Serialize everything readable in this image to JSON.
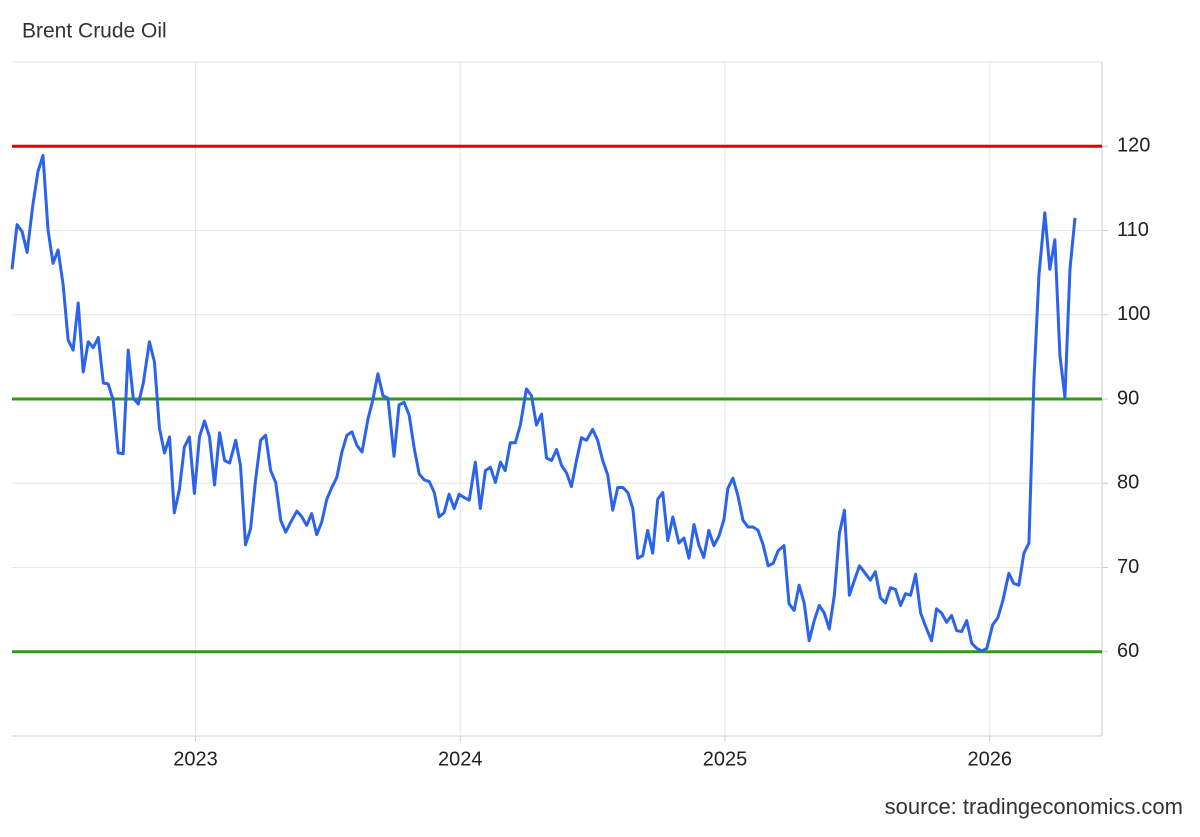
{
  "chart_data": {
    "type": "line",
    "title": "Brent Crude Oil",
    "source": "source: tradingeconomics.com",
    "x": [
      2022.307,
      2022.326,
      2022.345,
      2022.364,
      2022.386,
      2022.405,
      2022.424,
      2022.443,
      2022.462,
      2022.481,
      2022.5,
      2022.519,
      2022.538,
      2022.557,
      2022.576,
      2022.595,
      2022.614,
      2022.633,
      2022.652,
      2022.67,
      2022.689,
      2022.708,
      2022.727,
      2022.746,
      2022.765,
      2022.784,
      2022.803,
      2022.826,
      2022.845,
      2022.864,
      2022.883,
      2022.902,
      2022.92,
      2022.939,
      2022.958,
      2022.977,
      2022.996,
      2023.015,
      2023.034,
      2023.053,
      2023.072,
      2023.091,
      2023.11,
      2023.129,
      2023.152,
      2023.17,
      2023.189,
      2023.208,
      2023.227,
      2023.246,
      2023.265,
      2023.284,
      2023.303,
      2023.322,
      2023.341,
      2023.36,
      2023.383,
      2023.402,
      2023.42,
      2023.439,
      2023.458,
      2023.477,
      2023.496,
      2023.515,
      2023.534,
      2023.553,
      2023.572,
      2023.591,
      2023.61,
      2023.629,
      2023.652,
      2023.67,
      2023.689,
      2023.708,
      2023.727,
      2023.75,
      2023.769,
      2023.788,
      2023.807,
      2023.826,
      2023.845,
      2023.864,
      2023.883,
      2023.902,
      2023.92,
      2023.939,
      2023.958,
      2023.977,
      2023.996,
      2024.015,
      2024.034,
      2024.057,
      2024.076,
      2024.095,
      2024.114,
      2024.133,
      2024.152,
      2024.17,
      2024.189,
      2024.208,
      2024.227,
      2024.25,
      2024.269,
      2024.288,
      2024.307,
      2024.326,
      2024.345,
      2024.364,
      2024.383,
      2024.402,
      2024.42,
      2024.439,
      2024.458,
      2024.477,
      2024.5,
      2024.519,
      2024.538,
      2024.557,
      2024.576,
      2024.595,
      2024.614,
      2024.633,
      2024.652,
      2024.67,
      2024.689,
      2024.708,
      2024.727,
      2024.746,
      2024.765,
      2024.784,
      2024.803,
      2024.826,
      2024.845,
      2024.864,
      2024.883,
      2024.902,
      2024.92,
      2024.939,
      2024.958,
      2024.977,
      2024.996,
      2025.011,
      2025.03,
      2025.049,
      2025.068,
      2025.087,
      2025.106,
      2025.125,
      2025.144,
      2025.163,
      2025.182,
      2025.201,
      2025.223,
      2025.242,
      2025.261,
      2025.28,
      2025.299,
      2025.318,
      2025.337,
      2025.356,
      2025.375,
      2025.394,
      2025.413,
      2025.432,
      2025.451,
      2025.47,
      2025.489,
      2025.508,
      2025.53,
      2025.549,
      2025.568,
      2025.587,
      2025.606,
      2025.625,
      2025.644,
      2025.663,
      2025.682,
      2025.701,
      2025.72,
      2025.739,
      2025.758,
      2025.78,
      2025.799,
      2025.818,
      2025.837,
      2025.856,
      2025.875,
      2025.894,
      2025.913,
      2025.932,
      2025.951,
      2025.97,
      2025.989,
      2026.011,
      2026.03,
      2026.049,
      2026.072,
      2026.091,
      2026.11,
      2026.129,
      2026.148,
      2026.167,
      2026.186,
      2026.208,
      2026.227,
      2026.246,
      2026.265,
      2026.284,
      2026.303,
      2026.322
    ],
    "series": [
      {
        "name": "Brent",
        "color": "#2b63ec",
        "values": [
          105.4,
          110.7,
          109.9,
          107.4,
          113.1,
          117,
          118.9,
          110.1,
          106.1,
          107.7,
          103.6,
          97,
          95.8,
          101.4,
          93.2,
          96.8,
          96.1,
          97.3,
          91.9,
          91.8,
          89.9,
          83.6,
          83.5,
          95.8,
          90.1,
          89.4,
          91.9,
          96.8,
          94.4,
          86.5,
          83.6,
          85.5,
          76.5,
          79.2,
          84.3,
          85.5,
          78.8,
          85.5,
          87.4,
          85.5,
          79.8,
          86,
          82.7,
          82.4,
          85.1,
          82.1,
          72.7,
          74.6,
          80.4,
          85.1,
          85.7,
          81.5,
          80.1,
          75.6,
          74.2,
          75.4,
          76.7,
          76,
          75,
          76.4,
          73.9,
          75.4,
          78.1,
          79.5,
          80.7,
          83.7,
          85.7,
          86.1,
          84.5,
          83.7,
          87.7,
          89.9,
          93,
          90.4,
          90.1,
          83.2,
          89.3,
          89.6,
          88.1,
          84.2,
          81.1,
          80.4,
          80.2,
          78.9,
          76,
          76.5,
          78.7,
          77,
          78.7,
          78.3,
          78,
          82.5,
          77,
          81.5,
          81.9,
          80.1,
          82.5,
          81.5,
          84.8,
          84.8,
          86.9,
          91.2,
          90.4,
          86.9,
          88.2,
          83,
          82.7,
          84,
          82.1,
          81.2,
          79.6,
          82.7,
          85.4,
          85.1,
          86.4,
          85.1,
          82.7,
          81,
          76.8,
          79.5,
          79.5,
          78.9,
          77,
          71.1,
          71.4,
          74.4,
          71.7,
          78.1,
          78.9,
          73.2,
          76,
          72.9,
          73.5,
          71.1,
          75.1,
          72.6,
          71.2,
          74.4,
          72.6,
          73.7,
          75.7,
          79.4,
          80.6,
          78.5,
          75.6,
          74.8,
          74.8,
          74.4,
          72.7,
          70.2,
          70.5,
          72,
          72.6,
          65.7,
          64.9,
          67.9,
          65.8,
          61.3,
          63.7,
          65.5,
          64.6,
          62.7,
          66.7,
          74,
          76.8,
          66.7,
          68.5,
          70.2,
          69.3,
          68.5,
          69.5,
          66.4,
          65.8,
          67.6,
          67.4,
          65.5,
          66.9,
          66.7,
          69.2,
          64.6,
          63,
          61.3,
          65.1,
          64.6,
          63.5,
          64.3,
          62.5,
          62.4,
          63.7,
          61,
          60.4,
          60.1,
          60.4,
          63.2,
          64,
          66,
          69.3,
          68.1,
          67.9,
          71.7,
          72.9,
          92.3,
          104.8,
          112.1,
          105.4,
          108.9,
          95.2,
          90.2,
          105.4,
          111.5
        ]
      }
    ],
    "reference_lines": [
      {
        "value": 120,
        "color": "#e00000"
      },
      {
        "value": 90,
        "color": "#2f9a14"
      },
      {
        "value": 60,
        "color": "#2f9a14"
      }
    ],
    "xlim": [
      2022.307,
      2026.424
    ],
    "xticks": [
      2023,
      2024,
      2025,
      2026
    ],
    "ylim": [
      50,
      130
    ],
    "yticks": [
      60,
      70,
      80,
      90,
      100,
      110,
      120
    ],
    "grid": true
  }
}
